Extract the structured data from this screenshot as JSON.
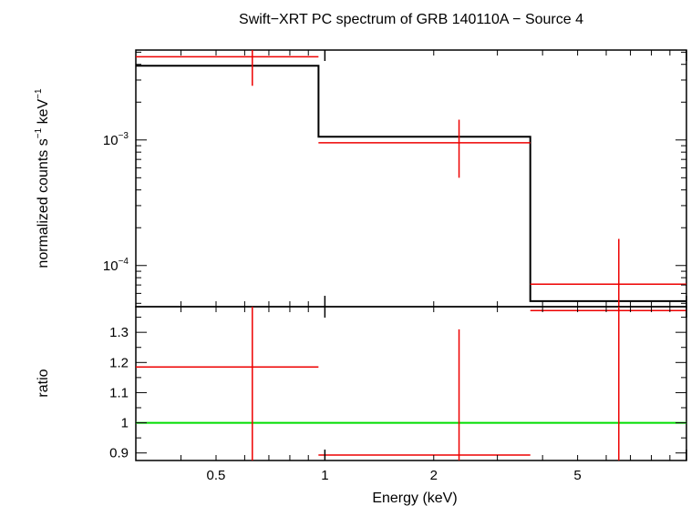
{
  "chart_data": {
    "title": "Swift−XRT PC spectrum of GRB 140110A − Source 4",
    "xlabel": "Energy (keV)",
    "x_scale": "log",
    "xlim": [
      0.3,
      10
    ],
    "x_ticks": [
      {
        "value": 0.5,
        "label": "0.5"
      },
      {
        "value": 1,
        "label": "1"
      },
      {
        "value": 2,
        "label": "2"
      },
      {
        "value": 5,
        "label": "5"
      }
    ],
    "panels": [
      {
        "type": "spectrum",
        "ylabel_main": "normalized counts s",
        "ylabel_sup1": "−1",
        "ylabel_mid": " keV",
        "ylabel_sup2": "−1",
        "y_scale": "log",
        "ylim": [
          4.7e-05,
          0.0052
        ],
        "y_ticks": [
          {
            "value": 0.001,
            "base": "10",
            "exp": "−3"
          },
          {
            "value": 0.0001,
            "base": "10",
            "exp": "−4"
          }
        ],
        "data_points": [
          {
            "x_low": 0.3,
            "x_high": 0.96,
            "x": 0.63,
            "y": 0.0046,
            "y_low": 0.0027,
            "y_high": 0.0052
          },
          {
            "x_low": 0.96,
            "x_high": 3.7,
            "x": 2.35,
            "y": 0.00095,
            "y_low": 0.0005,
            "y_high": 0.00145
          },
          {
            "x_low": 3.7,
            "x_high": 10,
            "x": 6.5,
            "y": 7.1e-05,
            "y_low": 4.7e-05,
            "y_high": 0.000163
          }
        ],
        "model_steps": [
          {
            "x_low": 0.3,
            "x_high": 0.96,
            "y": 0.0039
          },
          {
            "x_low": 0.96,
            "x_high": 3.7,
            "y": 0.00106
          },
          {
            "x_low": 3.7,
            "x_high": 10,
            "y": 5.2e-05
          }
        ],
        "data_color": "#ee0000",
        "model_color": "#000000"
      },
      {
        "type": "ratio",
        "ylabel": "ratio",
        "y_scale": "linear",
        "ylim": [
          0.875,
          1.385
        ],
        "y_ticks": [
          {
            "value": 0.9,
            "label": "0.9"
          },
          {
            "value": 1,
            "label": "1"
          },
          {
            "value": 1.1,
            "label": "1.1"
          },
          {
            "value": 1.2,
            "label": "1.2"
          },
          {
            "value": 1.3,
            "label": "1.3"
          }
        ],
        "data_points": [
          {
            "x_low": 0.3,
            "x_high": 0.96,
            "x": 0.63,
            "y": 1.185,
            "y_low": 0.875,
            "y_high": 1.385
          },
          {
            "x_low": 0.96,
            "x_high": 3.7,
            "x": 2.35,
            "y": 0.893,
            "y_low": 0.875,
            "y_high": 1.31
          },
          {
            "x_low": 3.7,
            "x_high": 10,
            "x": 6.5,
            "y": 1.372,
            "y_low": 0.875,
            "y_high": 1.385
          }
        ],
        "reference_line": 1,
        "data_color": "#ee0000",
        "reference_color": "#00dd00"
      }
    ]
  }
}
